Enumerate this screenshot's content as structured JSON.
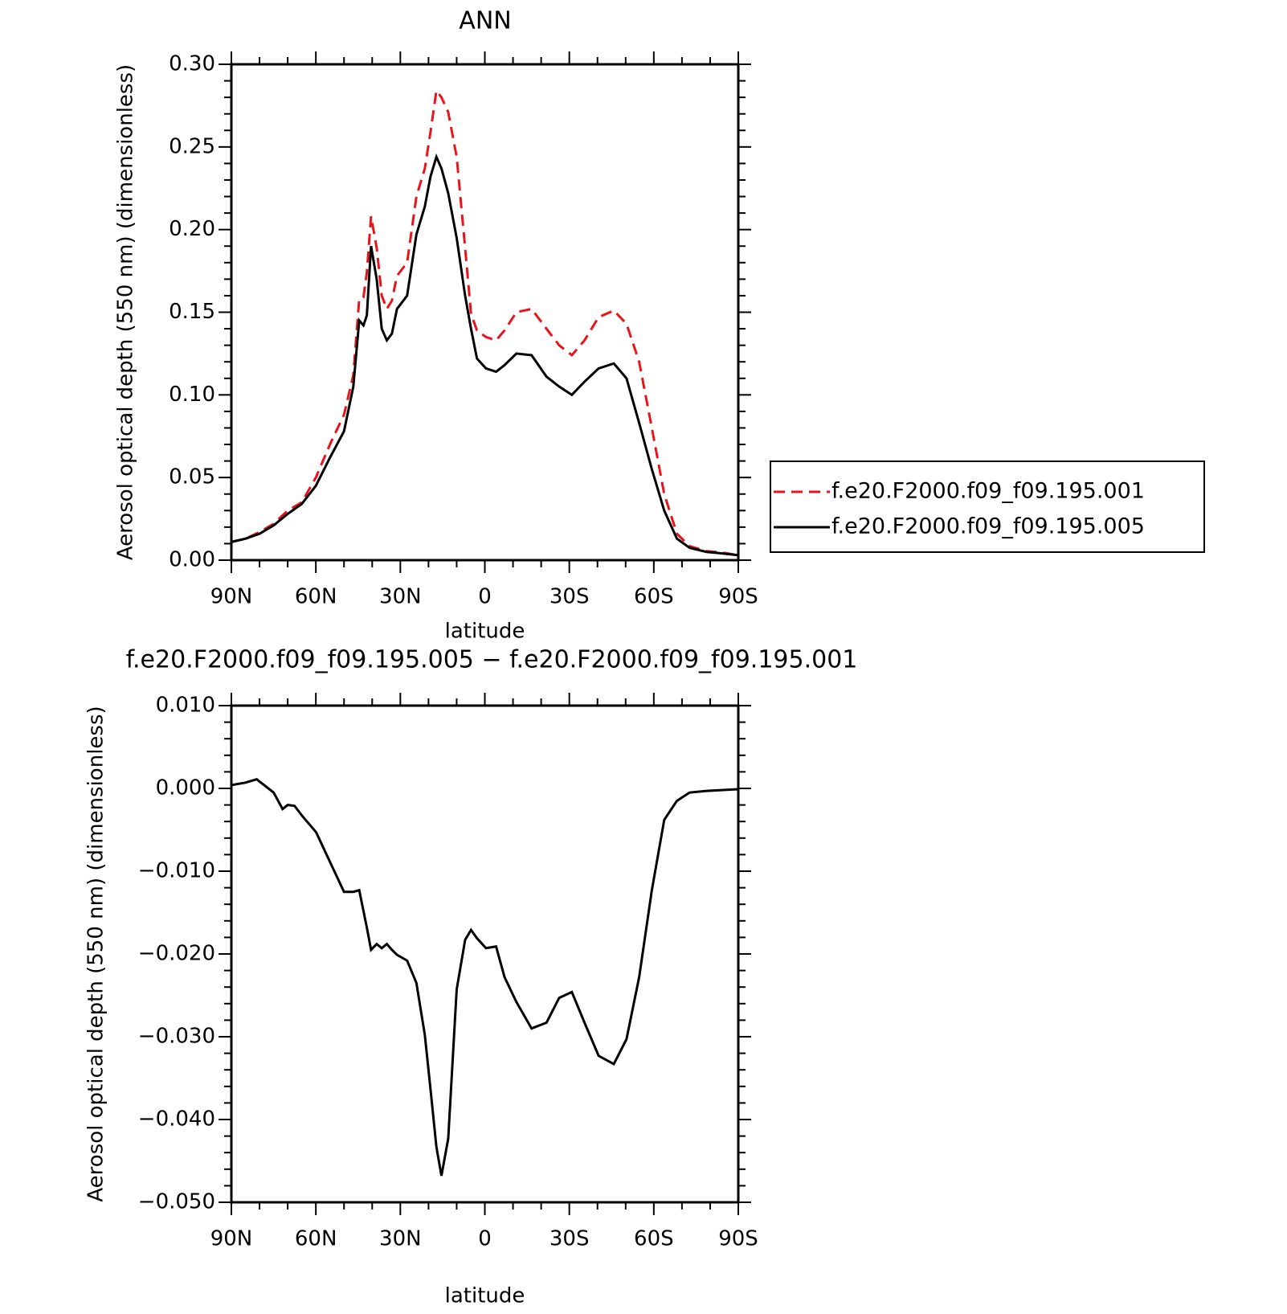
{
  "chart_data": [
    {
      "type": "line",
      "title": "ANN",
      "xlabel": "latitude",
      "ylabel": "Aerosol optical depth (550 nm) (dimensionless)",
      "xlim": [
        90,
        -90
      ],
      "xticks": [
        {
          "value": 90,
          "label": "90N"
        },
        {
          "value": 60,
          "label": "60N"
        },
        {
          "value": 30,
          "label": "30N"
        },
        0,
        {
          "value": -30,
          "label": "30S"
        },
        {
          "value": -60,
          "label": "60S"
        },
        {
          "value": -90,
          "label": "90S"
        }
      ],
      "xminorticks": [
        80,
        70,
        50,
        40,
        20,
        10,
        -10,
        -20,
        -40,
        -50,
        -70,
        -80
      ],
      "ylim": [
        0,
        0.3
      ],
      "yticks": [
        {
          "value": 0,
          "label": "0.00"
        },
        0.05,
        {
          "value": 0.1,
          "label": "0.10"
        },
        0.15,
        {
          "value": 0.2,
          "label": "0.20"
        },
        0.25,
        {
          "value": 0.3,
          "label": "0.30"
        }
      ],
      "yminorticks": [
        0.01,
        0.02,
        0.03,
        0.04,
        0.06,
        0.07,
        0.08,
        0.09,
        0.11,
        0.12,
        0.13,
        0.14,
        0.16,
        0.17,
        0.18,
        0.19,
        0.21,
        0.22,
        0.23,
        0.24,
        0.26,
        0.27,
        0.28,
        0.29
      ],
      "grid": false,
      "legend": "right",
      "x": [
        90,
        85,
        80,
        75,
        70,
        65,
        60,
        55,
        50,
        46.7,
        44.6,
        43.1,
        41.9,
        40.4,
        38.4,
        36.6,
        34.8,
        33,
        31.2,
        27.6,
        24.3,
        21.3,
        19.3,
        17.2,
        15.4,
        13,
        10,
        7,
        4.9,
        2.8,
        -0.4,
        -4,
        -7,
        -11.2,
        -16.6,
        -21.9,
        -26.4,
        -30.9,
        -35.4,
        -40.4,
        -45.8,
        -50.3,
        -54.8,
        -59.3,
        -63.7,
        -68.2,
        -72.7,
        -78.7,
        -84.6,
        -90
      ],
      "series": [
        {
          "name": "f.e20.F2000.f09_f09.195.001",
          "color": "#e8141b",
          "line_style": "dashed",
          "values": [
            0.011,
            0.013,
            0.017,
            0.022,
            0.03,
            0.035,
            0.05,
            0.07,
            0.088,
            0.112,
            0.158,
            0.159,
            0.174,
            0.208,
            0.189,
            0.16,
            0.152,
            0.157,
            0.172,
            0.18,
            0.22,
            0.237,
            0.259,
            0.284,
            0.28,
            0.271,
            0.244,
            0.189,
            0.149,
            0.139,
            0.135,
            0.133,
            0.139,
            0.15,
            0.152,
            0.14,
            0.13,
            0.124,
            0.133,
            0.147,
            0.151,
            0.143,
            0.12,
            0.08,
            0.04,
            0.016,
            0.0085,
            0.0055,
            0.0045,
            0.003
          ]
        },
        {
          "name": "f.e20.F2000.f09_f09.195.005",
          "color": "#000000",
          "line_style": "solid",
          "values": [
            0.011,
            0.013,
            0.016,
            0.021,
            0.028,
            0.034,
            0.045,
            0.062,
            0.078,
            0.105,
            0.145,
            0.142,
            0.148,
            0.19,
            0.17,
            0.14,
            0.133,
            0.137,
            0.152,
            0.16,
            0.197,
            0.214,
            0.232,
            0.244,
            0.237,
            0.222,
            0.195,
            0.16,
            0.14,
            0.122,
            0.116,
            0.114,
            0.118,
            0.125,
            0.124,
            0.111,
            0.105,
            0.1,
            0.108,
            0.116,
            0.119,
            0.11,
            0.083,
            0.055,
            0.03,
            0.013,
            0.0075,
            0.005,
            0.004,
            0.003
          ]
        }
      ]
    },
    {
      "type": "line",
      "title": "f.e20.F2000.f09_f09.195.005 − f.e20.F2000.f09_f09.195.001",
      "xlabel": "latitude",
      "ylabel": "Aerosol optical depth (550 nm) (dimensionless)",
      "xlim": [
        90,
        -90
      ],
      "xticks": [
        {
          "value": 90,
          "label": "90N"
        },
        {
          "value": 60,
          "label": "60N"
        },
        {
          "value": 30,
          "label": "30N"
        },
        0,
        {
          "value": -30,
          "label": "30S"
        },
        {
          "value": -60,
          "label": "60S"
        },
        {
          "value": -90,
          "label": "90S"
        }
      ],
      "xminorticks": [
        80,
        70,
        50,
        40,
        20,
        10,
        -10,
        -20,
        -40,
        -50,
        -70,
        -80
      ],
      "ylim": [
        -0.05,
        0.01
      ],
      "yticks": [
        {
          "value": -0.05,
          "label": "−0.050"
        },
        {
          "value": -0.04,
          "label": "−0.040"
        },
        {
          "value": -0.03,
          "label": "−0.030"
        },
        {
          "value": -0.02,
          "label": "−0.020"
        },
        {
          "value": -0.01,
          "label": "−0.010"
        },
        {
          "value": 0,
          "label": "0.000"
        },
        {
          "value": 0.01,
          "label": "0.010"
        }
      ],
      "yminorticks": [
        -0.048,
        -0.046,
        -0.044,
        -0.042,
        -0.038,
        -0.036,
        -0.034,
        -0.032,
        -0.028,
        -0.026,
        -0.024,
        -0.022,
        -0.018,
        -0.016,
        -0.014,
        -0.012,
        -0.008,
        -0.006,
        -0.004,
        -0.002,
        0.002,
        0.004,
        0.006,
        0.008
      ],
      "grid": false,
      "x": [
        90,
        85,
        81,
        75,
        71.8,
        70,
        67.6,
        64.9,
        59.9,
        55.1,
        50,
        46.7,
        44.6,
        43.1,
        41.9,
        40.4,
        38.4,
        36.6,
        34.8,
        33,
        31.2,
        27.6,
        24.3,
        21.3,
        19.3,
        17.2,
        15.4,
        13,
        10,
        7,
        4.9,
        2.8,
        -0.4,
        -4,
        -7,
        -11.2,
        -16.6,
        -21.9,
        -26.4,
        -30.9,
        -35.4,
        -40.4,
        -45.8,
        -50.3,
        -54.8,
        -59.3,
        -63.7,
        -68.2,
        -72.7,
        -78.7,
        -84.6,
        -90
      ],
      "color": "#000000",
      "values": [
        0.0004,
        0.0007,
        0.0011,
        -0.0005,
        -0.0025,
        -0.002,
        -0.0021,
        -0.0033,
        -0.0053,
        -0.0088,
        -0.0125,
        -0.0125,
        -0.0123,
        -0.0148,
        -0.0168,
        -0.0195,
        -0.0188,
        -0.0193,
        -0.0188,
        -0.0195,
        -0.0201,
        -0.0208,
        -0.0235,
        -0.0298,
        -0.0363,
        -0.0433,
        -0.0468,
        -0.0423,
        -0.0243,
        -0.0183,
        -0.0171,
        -0.0181,
        -0.0193,
        -0.0191,
        -0.0228,
        -0.0258,
        -0.029,
        -0.0283,
        -0.0253,
        -0.0246,
        -0.0283,
        -0.0323,
        -0.0333,
        -0.0303,
        -0.0228,
        -0.0123,
        -0.0038,
        -0.0015,
        -0.0005,
        -0.0003,
        -0.0002,
        -0.0001
      ]
    }
  ]
}
